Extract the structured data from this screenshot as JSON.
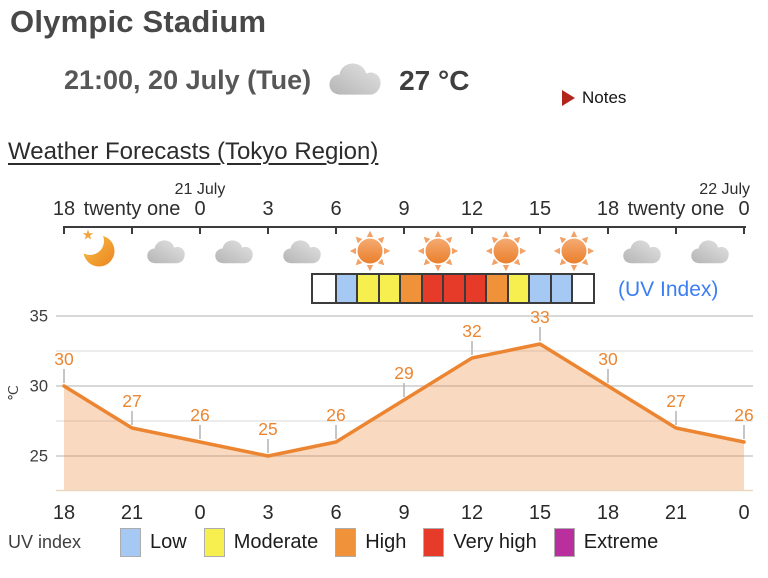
{
  "header": {
    "title": "Olympic Stadium",
    "datetime": "21:00, 20 July (Tue)",
    "current_weather_icon": "cloud",
    "temperature": "27 °C",
    "notes_label": "Notes"
  },
  "section": {
    "heading": "Weather Forecasts (Tokyo Region)"
  },
  "timeline": {
    "date_labels": [
      {
        "text": "21 July",
        "tick_index": 2,
        "align": "center"
      },
      {
        "text": "22 July",
        "tick_index": 10,
        "align": "right"
      }
    ],
    "hours": [
      "18",
      "twenty one",
      "0",
      "3",
      "6",
      "9",
      "12",
      "15",
      "18",
      "twenty one",
      "0"
    ],
    "icons": [
      "moon-star",
      "cloud",
      "cloud",
      "cloud",
      "sun",
      "sun",
      "sun",
      "sun",
      "cloud",
      "cloud"
    ]
  },
  "uv_strip": {
    "label": "(UV Index)",
    "cells": [
      "none",
      "low",
      "moderate",
      "moderate",
      "high",
      "very_high",
      "very_high",
      "very_high",
      "high",
      "moderate",
      "low",
      "low",
      "none"
    ],
    "palette": {
      "none": "#ffffff",
      "low": "#a6c9f3",
      "moderate": "#f7ef4f",
      "high": "#ef923a",
      "very_high": "#e73b2a",
      "extreme": "#b92f9d"
    }
  },
  "chart_data": {
    "type": "area",
    "x": [
      "18",
      "21",
      "0",
      "3",
      "6",
      "9",
      "12",
      "15",
      "18",
      "21",
      "0"
    ],
    "values": [
      30,
      27,
      26,
      25,
      26,
      29,
      32,
      33,
      30,
      27,
      26
    ],
    "ylabel": "℃",
    "yticks": [
      25,
      30,
      35
    ],
    "minor_yticks": [
      27.5,
      32.5
    ],
    "ylim": [
      22.5,
      35.7
    ],
    "line_color": "#EC8531",
    "fill_color": "rgba(236,133,49,0.30)",
    "label_color": "#EC8531",
    "grid": true,
    "legend_position": "none"
  },
  "legend": {
    "title": "UV index",
    "items": [
      {
        "label": "Low",
        "level": "low",
        "color": "#a6c9f3"
      },
      {
        "label": "Moderate",
        "level": "moderate",
        "color": "#f7ef4f"
      },
      {
        "label": "High",
        "level": "high",
        "color": "#ef923a"
      },
      {
        "label": "Very high",
        "level": "very_high",
        "color": "#e73b2a"
      },
      {
        "label": "Extreme",
        "level": "extreme",
        "color": "#b92f9d"
      }
    ]
  }
}
